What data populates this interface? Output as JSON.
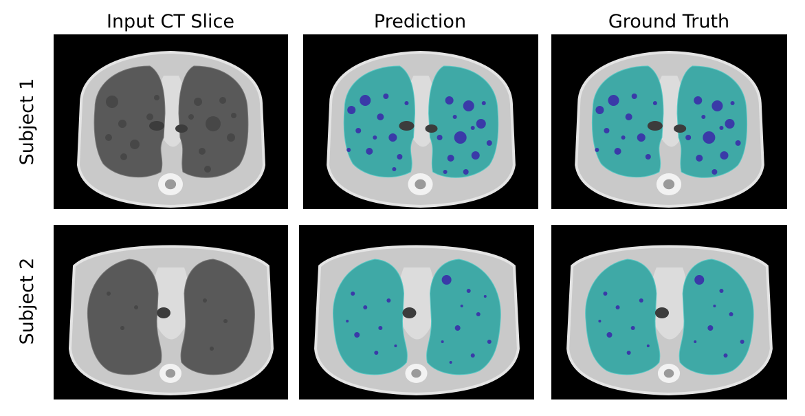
{
  "column_titles": [
    "Input CT Slice",
    "Prediction",
    "Ground Truth"
  ],
  "row_titles": [
    "Subject 1",
    "Subject 2"
  ],
  "panels": [
    {
      "row": 0,
      "col": 0,
      "overlay": "none"
    },
    {
      "row": 0,
      "col": 1,
      "overlay": "prediction"
    },
    {
      "row": 0,
      "col": 2,
      "overlay": "ground-truth"
    },
    {
      "row": 1,
      "col": 0,
      "overlay": "none"
    },
    {
      "row": 1,
      "col": 1,
      "overlay": "prediction"
    },
    {
      "row": 1,
      "col": 2,
      "overlay": "ground-truth"
    }
  ],
  "colors": {
    "lung_mask": "#3fa9a6",
    "lesion": "#3a3aa8",
    "lung_raw": "#595959",
    "soft_tissue": "#c9c9c9",
    "background": "#000000"
  }
}
